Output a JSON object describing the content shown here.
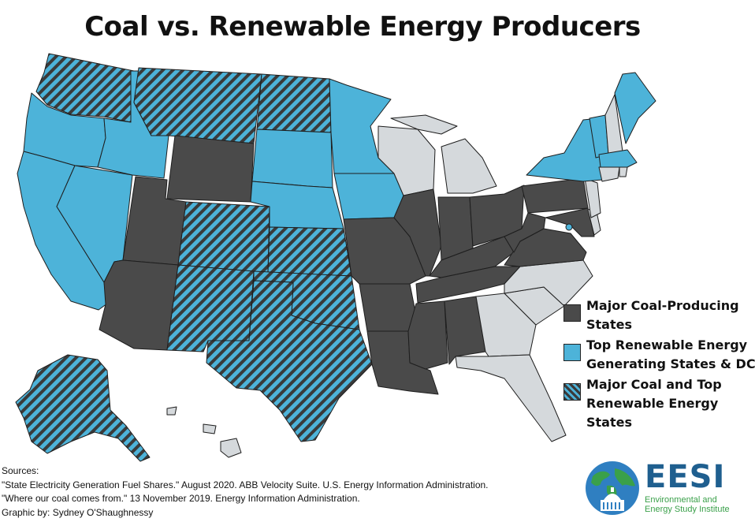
{
  "title": "Coal vs. Renewable Energy Producers",
  "legend": [
    {
      "category": "coal",
      "line1": "Major Coal-Producing",
      "line2": "States",
      "color": "#4a4a4a"
    },
    {
      "category": "renewable",
      "line1": "Top Renewable Energy",
      "line2": "Generating States & DC",
      "color": "#4db3d9"
    },
    {
      "category": "both",
      "line1": "Major Coal and Top",
      "line2": "Renewable Energy States",
      "color": "#4db3d9",
      "hatch": "#3a3a3a"
    }
  ],
  "other_color": "#d5d9dc",
  "sources": {
    "heading": "Sources:",
    "line1": "\"State Electricity Generation Fuel Shares.\" August 2020.  ABB Velocity Suite. U.S. Energy Information Administration.",
    "line2": "\"Where our coal comes from.\" 13 November 2019. Energy Information Administration.",
    "credit": "Graphic by: Sydney O'Shaughnessy"
  },
  "logo": {
    "abbr": "EESI",
    "line1": "Environmental and",
    "line2": "Energy Study Institute"
  },
  "map_categories": {
    "coal": [
      "WY",
      "UT",
      "AZ",
      "MO",
      "AR",
      "LA",
      "MS",
      "AL",
      "TN",
      "KY",
      "IL",
      "IN",
      "OH",
      "WV",
      "PA",
      "VA",
      "MD"
    ],
    "renewable": [
      "OR",
      "CA",
      "ID",
      "NV",
      "SD",
      "NE",
      "MN",
      "IA",
      "NY",
      "VT",
      "ME",
      "MA",
      "DC"
    ],
    "both": [
      "WA",
      "MT",
      "ND",
      "CO",
      "NM",
      "KS",
      "OK",
      "TX",
      "AK"
    ],
    "other": [
      "WI",
      "MI",
      "GA",
      "FL",
      "SC",
      "NC",
      "NJ",
      "DE",
      "CT",
      "RI",
      "NH",
      "HI"
    ]
  }
}
